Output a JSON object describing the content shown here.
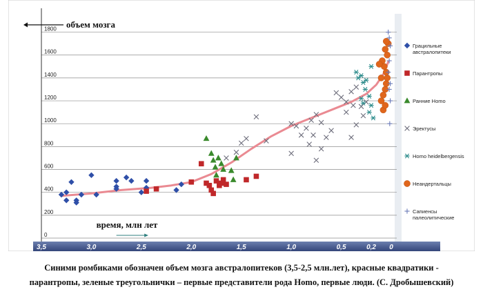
{
  "chart_data": {
    "type": "scatter",
    "title": "",
    "ylabel": "объем мозга",
    "xlabel": "время, млн лет",
    "ylim": [
      0,
      1900
    ],
    "xlim": [
      3.5,
      0
    ],
    "y_ticks": [
      0,
      200,
      400,
      600,
      800,
      1000,
      1200,
      1400,
      1600,
      1800
    ],
    "y_tick_labels": [
      "0",
      "200",
      "400",
      "600",
      "800",
      "1000",
      "1200",
      "1400",
      "1600",
      "1800"
    ],
    "x_ticks": [
      3.5,
      3.0,
      2.5,
      2.0,
      1.5,
      1.0,
      0.5,
      0.2,
      0
    ],
    "x_tick_labels": [
      "3,5",
      "3,0",
      "2,5",
      "2,0",
      "1,5",
      "1,0",
      "0,5",
      "0,2",
      "0"
    ],
    "grid": true,
    "legend_position": "right",
    "legend_lines": [
      [
        "Грацильные",
        "австралопитеки"
      ],
      [
        "Парантропы"
      ],
      [
        "Ранние Homo"
      ],
      [
        "Эректусы"
      ],
      [
        "Homo heidelbergensis"
      ],
      [
        "Неандертальцы"
      ],
      [
        "Сапиенсы",
        "палеолитические"
      ]
    ],
    "series": [
      {
        "shape": "diamond",
        "color": "#2f4fa8",
        "x": [
          3.25,
          3.2,
          3.1,
          3.15,
          3.0,
          2.95,
          2.75,
          2.75,
          2.65,
          2.6,
          2.5,
          2.45,
          2.45,
          2.15,
          2.1,
          3.3,
          3.25,
          3.15,
          2.75
        ],
        "y": [
          400,
          490,
          380,
          330,
          550,
          380,
          500,
          450,
          530,
          500,
          400,
          440,
          500,
          420,
          470,
          380,
          330,
          310,
          430
        ]
      },
      {
        "shape": "square",
        "color": "#c0282a",
        "x": [
          2.45,
          2.35,
          2.0,
          1.9,
          1.85,
          1.8,
          1.75,
          1.72,
          1.7,
          1.65,
          1.45,
          1.35,
          1.82,
          1.78,
          1.68
        ],
        "y": [
          410,
          430,
          490,
          650,
          480,
          420,
          500,
          460,
          480,
          470,
          510,
          540,
          460,
          390,
          510
        ],
        "line_x": [
          3.3,
          3.0,
          2.7,
          2.4,
          2.2,
          2.0,
          1.8,
          1.6,
          1.4,
          1.2,
          1.0,
          0.8,
          0.6,
          0.4,
          0.25,
          0.15,
          0.08,
          0.03
        ],
        "line_y": [
          370,
          390,
          420,
          440,
          460,
          490,
          560,
          660,
          780,
          890,
          980,
          1050,
          1120,
          1190,
          1260,
          1340,
          1430,
          1540
        ]
      },
      {
        "shape": "triangle",
        "color": "#3a8a2c",
        "x": [
          1.85,
          1.8,
          1.78,
          1.76,
          1.75,
          1.73,
          1.7,
          1.68,
          1.6,
          1.58,
          1.55
        ],
        "y": [
          870,
          740,
          680,
          620,
          550,
          700,
          650,
          600,
          590,
          510,
          700
        ]
      },
      {
        "shape": "x",
        "color": "#6c6c7a",
        "x": [
          1.65,
          1.55,
          1.5,
          1.45,
          1.35,
          1.25,
          1.0,
          0.95,
          0.9,
          0.85,
          0.8,
          0.75,
          0.7,
          0.65,
          0.55,
          0.5,
          0.45,
          0.4,
          0.38,
          0.35,
          0.3,
          0.28,
          0.25,
          0.6,
          0.78,
          0.82,
          1.0,
          0.45,
          0.35,
          0.4,
          0.75,
          0.7
        ],
        "y": [
          700,
          750,
          830,
          870,
          1060,
          850,
          1000,
          980,
          900,
          960,
          1030,
          1080,
          1010,
          880,
          1270,
          1230,
          1190,
          1280,
          1160,
          1320,
          1150,
          1070,
          1190,
          940,
          900,
          820,
          740,
          1100,
          990,
          880,
          680,
          780
        ]
      },
      {
        "shape": "asterisk",
        "color": "#2a8a8a",
        "x": [
          0.35,
          0.3,
          0.28,
          0.25,
          0.22,
          0.2,
          0.18,
          0.3,
          0.22,
          0.26,
          0.2,
          0.33,
          0.28
        ],
        "y": [
          1450,
          1420,
          1360,
          1380,
          1240,
          1160,
          1050,
          1220,
          1100,
          1300,
          1500,
          1400,
          1180
        ],
        "extra_note": ""
      },
      {
        "shape": "circle",
        "color": "#e0661c",
        "x": [
          0.1,
          0.08,
          0.06,
          0.05,
          0.04,
          0.05,
          0.07,
          0.09,
          0.04,
          0.06,
          0.03,
          0.05,
          0.08,
          0.1,
          0.12,
          0.06
        ],
        "y": [
          1200,
          1250,
          1300,
          1350,
          1400,
          1450,
          1500,
          1550,
          1600,
          1650,
          1700,
          1720,
          1120,
          1400,
          1520,
          1160
        ]
      },
      {
        "shape": "plus",
        "color": "#6a7ab8",
        "x": [
          0.03,
          0.02,
          0.01,
          0.02,
          0.03,
          0.01,
          0.02,
          0.01,
          0.015
        ],
        "y": [
          1800,
          1750,
          1680,
          1550,
          1450,
          1350,
          1300,
          1200,
          1000
        ]
      }
    ]
  },
  "caption": [
    "Синими ромбиками обозначен объем мозга австралопитеков (3,5-2,5 млн.лет), красные квадратики -",
    "парантропы, зеленые треугольнички – первые представители рода Homo, первые люди. (С. Дробышевский)"
  ]
}
